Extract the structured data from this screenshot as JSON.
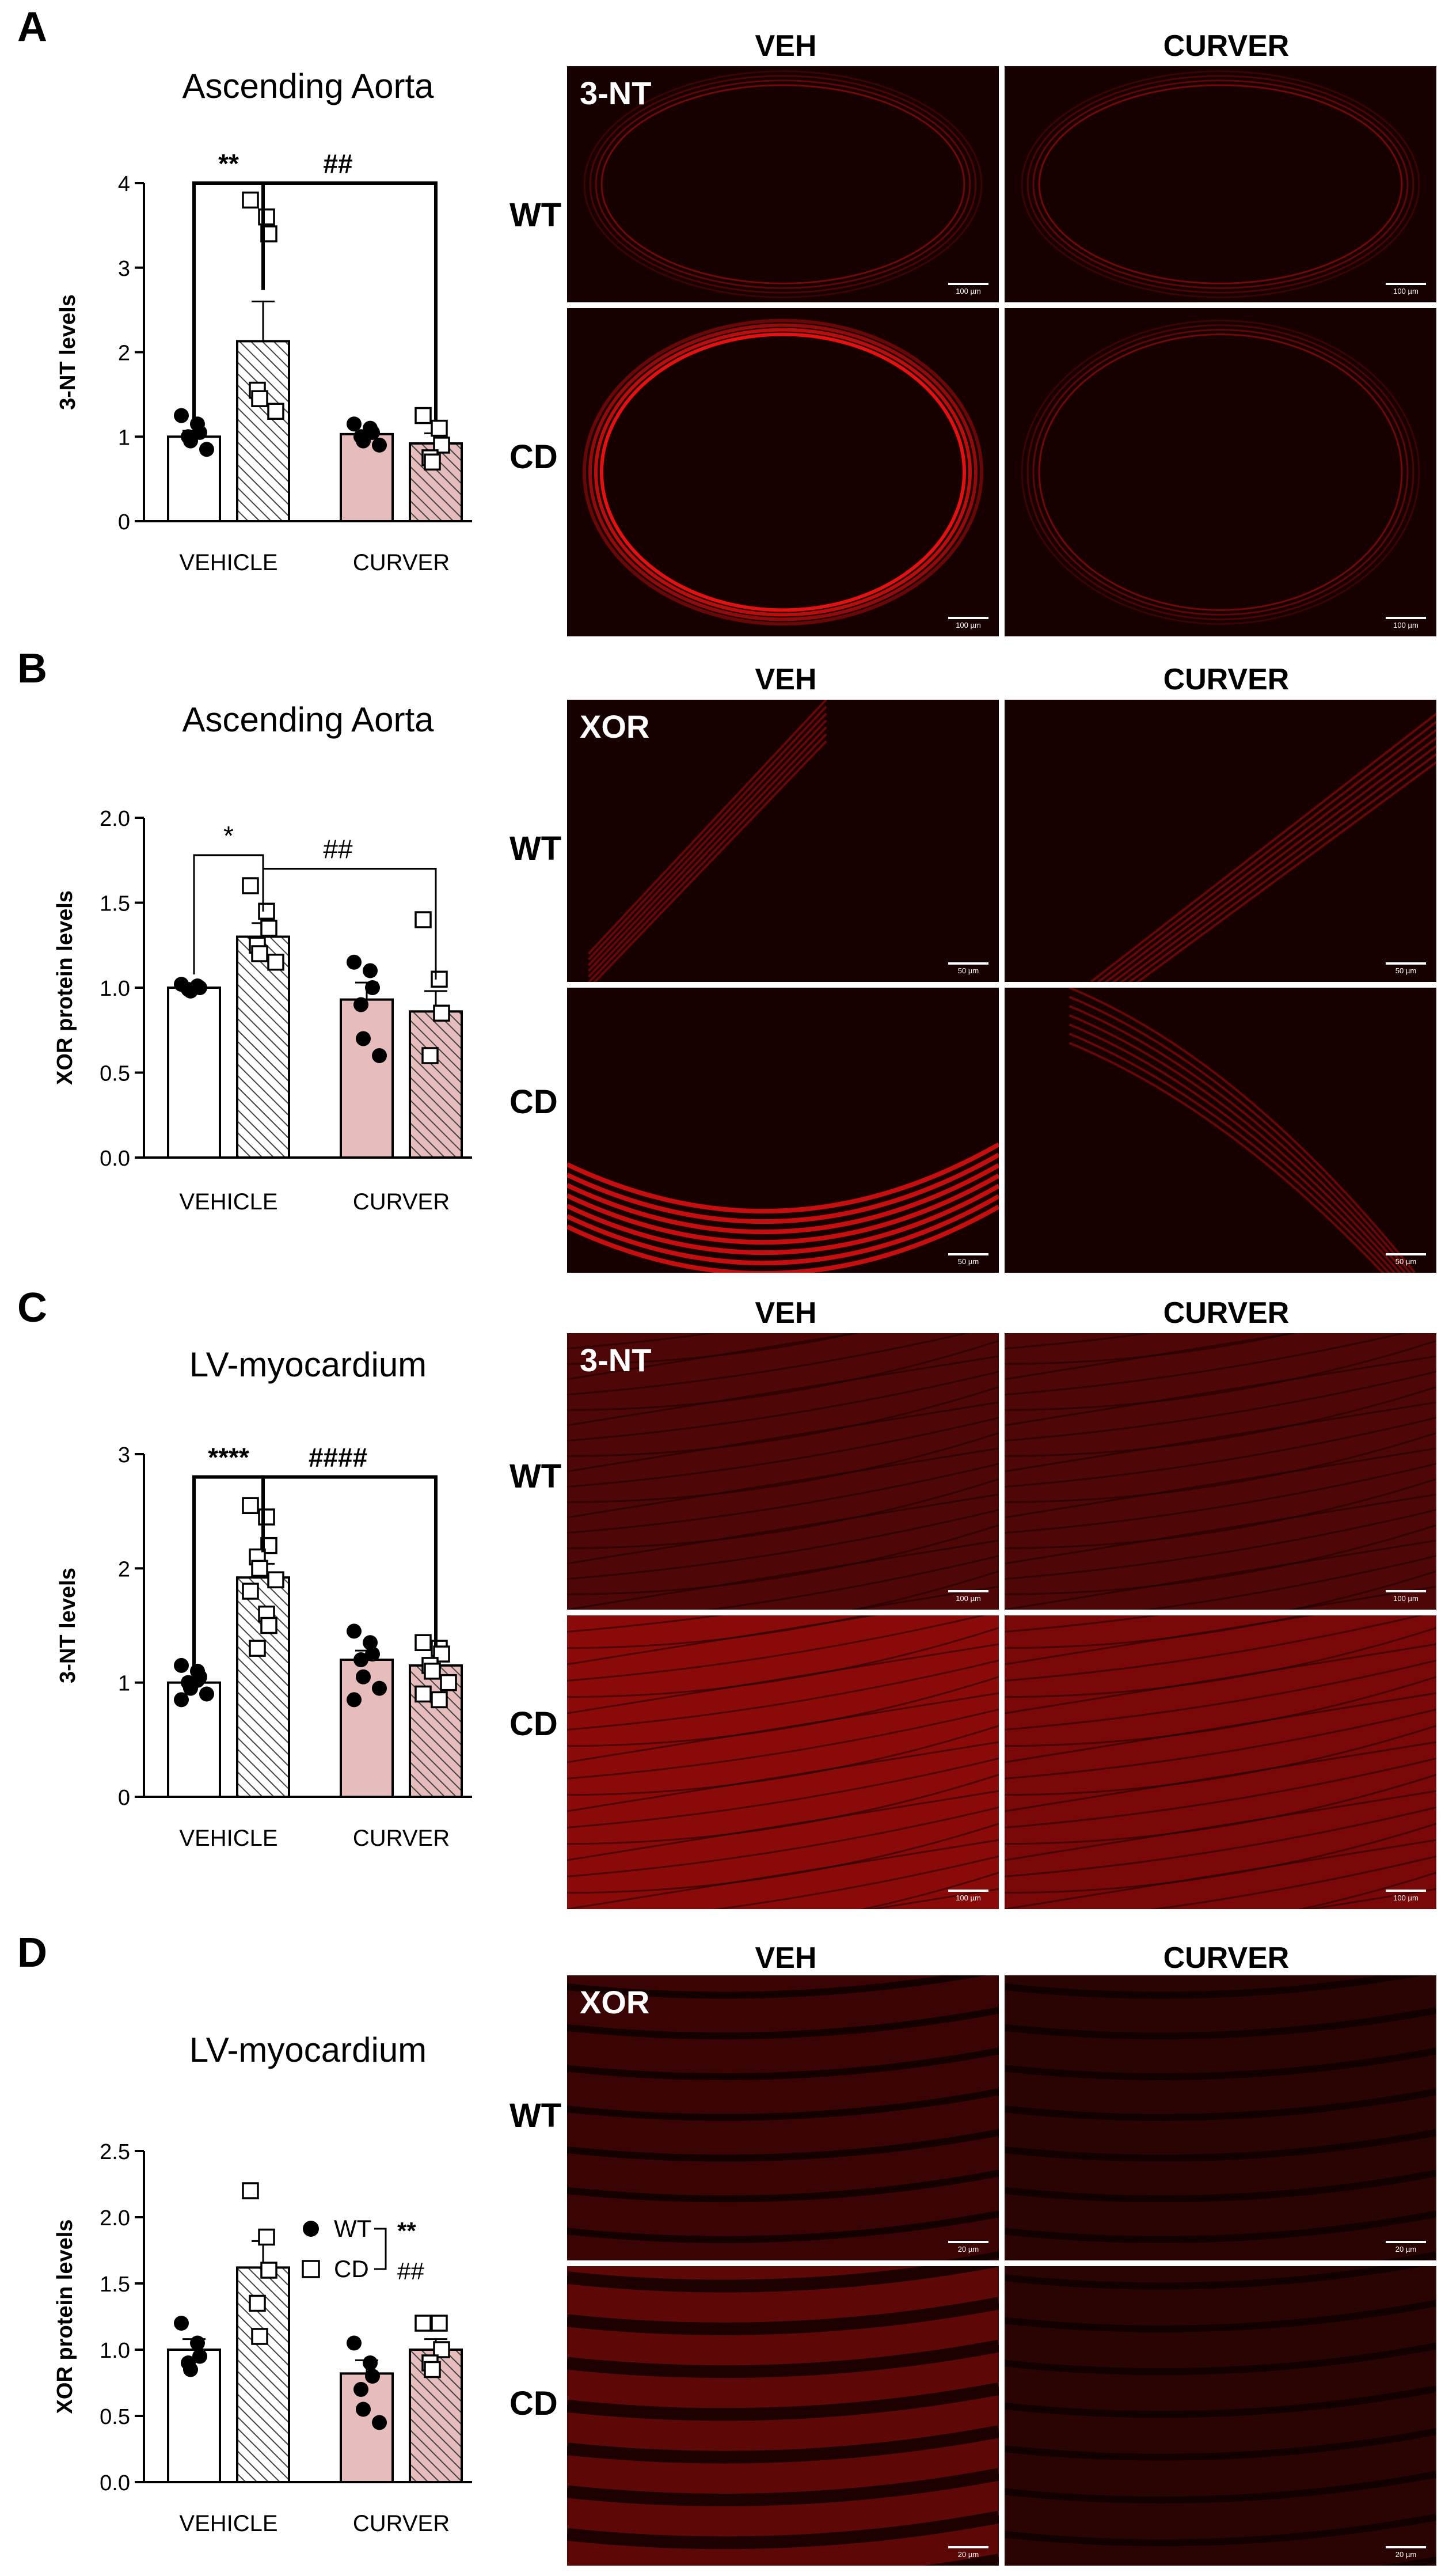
{
  "colors": {
    "wt_fill": "#ffffff",
    "curver_fill": "#e6bcbc",
    "hatch": "#444444",
    "axis": "#000000",
    "image_bg": "#150000",
    "stain": "#e61010"
  },
  "column_headers": {
    "veh": "VEH",
    "curver": "CURVER"
  },
  "row_headers": {
    "wt": "WT",
    "cd": "CD"
  },
  "panels": [
    {
      "id": "A",
      "letter": "A",
      "stain": "3-NT",
      "scalebar": "100 µm",
      "chart_data": {
        "type": "bar",
        "title": "Ascending Aorta",
        "ylabel": "3-NT levels",
        "xlabel": "",
        "ylim": [
          0,
          4
        ],
        "yticks": [
          0,
          1,
          2,
          3,
          4
        ],
        "ytick_labels": [
          "0",
          "1",
          "2",
          "3",
          "4"
        ],
        "categories": [
          "VEHICLE",
          "CURVER"
        ],
        "bars": [
          {
            "group": 0,
            "genotype": "WT",
            "mean": 1.0,
            "sem": 0.07,
            "points": [
              1.25,
              1.15,
              1.05,
              1.0,
              0.95,
              0.85
            ]
          },
          {
            "group": 0,
            "genotype": "CD",
            "mean": 2.13,
            "sem": 0.47,
            "points": [
              3.8,
              3.6,
              3.4,
              1.55,
              1.45,
              1.3
            ]
          },
          {
            "group": 1,
            "genotype": "WT",
            "mean": 1.03,
            "sem": 0.04,
            "points": [
              1.15,
              1.1,
              1.05,
              1.0,
              0.95,
              0.9
            ]
          },
          {
            "group": 1,
            "genotype": "CD",
            "mean": 0.92,
            "sem": 0.12,
            "points": [
              1.25,
              1.1,
              0.9,
              0.75,
              0.7
            ]
          }
        ],
        "annotations": [
          {
            "text": "**",
            "from": 0,
            "to": 1,
            "y": 4.0,
            "bold": true
          },
          {
            "text": "##",
            "from": 1,
            "to": 3,
            "y": 4.0,
            "bold": true
          }
        ]
      }
    },
    {
      "id": "B",
      "letter": "B",
      "stain": "XOR",
      "scalebar": "50 µm",
      "chart_data": {
        "type": "bar",
        "title": "Ascending Aorta",
        "ylabel": "XOR protein levels",
        "xlabel": "",
        "ylim": [
          0,
          2
        ],
        "yticks": [
          0,
          0.5,
          1,
          1.5,
          2
        ],
        "ytick_labels": [
          "0.0",
          "0.5",
          "1.0",
          "1.5",
          "2.0"
        ],
        "categories": [
          "VEHICLE",
          "CURVER"
        ],
        "bars": [
          {
            "group": 0,
            "genotype": "WT",
            "mean": 1.0,
            "sem": 0.01,
            "points": [
              1.02,
              1.01,
              1.0,
              0.99,
              0.98
            ]
          },
          {
            "group": 0,
            "genotype": "CD",
            "mean": 1.3,
            "sem": 0.08,
            "points": [
              1.6,
              1.45,
              1.35,
              1.25,
              1.2,
              1.15
            ]
          },
          {
            "group": 1,
            "genotype": "WT",
            "mean": 0.93,
            "sem": 0.1,
            "points": [
              1.15,
              1.1,
              1.0,
              0.9,
              0.7,
              0.6
            ]
          },
          {
            "group": 1,
            "genotype": "CD",
            "mean": 0.86,
            "sem": 0.12,
            "points": [
              1.4,
              1.05,
              0.85,
              0.6
            ]
          }
        ],
        "annotations": [
          {
            "text": "*",
            "from": 0,
            "to": 1,
            "y": 1.78,
            "bold": false
          },
          {
            "text": "##",
            "from": 1,
            "to": 3,
            "y": 1.7,
            "bold": false
          }
        ]
      }
    },
    {
      "id": "C",
      "letter": "C",
      "stain": "3-NT",
      "scalebar": "100 µm",
      "chart_data": {
        "type": "bar",
        "title": "LV-myocardium",
        "ylabel": "3-NT levels",
        "xlabel": "",
        "ylim": [
          0,
          3
        ],
        "yticks": [
          0,
          1,
          2,
          3
        ],
        "ytick_labels": [
          "0",
          "1",
          "2",
          "3"
        ],
        "categories": [
          "VEHICLE",
          "CURVER"
        ],
        "bars": [
          {
            "group": 0,
            "genotype": "WT",
            "mean": 1.0,
            "sem": 0.04,
            "points": [
              1.15,
              1.1,
              1.05,
              1.0,
              0.95,
              0.9,
              0.85,
              1.02
            ]
          },
          {
            "group": 0,
            "genotype": "CD",
            "mean": 1.92,
            "sem": 0.12,
            "points": [
              2.55,
              2.45,
              2.2,
              2.1,
              2.0,
              1.9,
              1.8,
              1.6,
              1.5,
              1.3
            ]
          },
          {
            "group": 1,
            "genotype": "WT",
            "mean": 1.2,
            "sem": 0.08,
            "points": [
              1.45,
              1.35,
              1.25,
              1.2,
              1.05,
              0.95,
              0.85
            ]
          },
          {
            "group": 1,
            "genotype": "CD",
            "mean": 1.15,
            "sem": 0.06,
            "points": [
              1.35,
              1.3,
              1.25,
              1.15,
              1.1,
              1.0,
              0.9,
              0.85
            ]
          }
        ],
        "annotations": [
          {
            "text": "****",
            "from": 0,
            "to": 1,
            "y": 2.8,
            "bold": true
          },
          {
            "text": "####",
            "from": 1,
            "to": 3,
            "y": 2.8,
            "bold": true
          }
        ]
      }
    },
    {
      "id": "D",
      "letter": "D",
      "stain": "XOR",
      "scalebar": "20 µm",
      "legend": {
        "entries": [
          {
            "marker": "circle",
            "label": "WT"
          },
          {
            "marker": "square",
            "label": "CD"
          }
        ],
        "significance": [
          "**",
          "##"
        ]
      },
      "chart_data": {
        "type": "bar",
        "title": "LV-myocardium",
        "ylabel": "XOR protein levels",
        "xlabel": "",
        "ylim": [
          0,
          2.5
        ],
        "yticks": [
          0,
          0.5,
          1,
          1.5,
          2,
          2.5
        ],
        "ytick_labels": [
          "0.0",
          "0.5",
          "1.0",
          "1.5",
          "2.0",
          "2.5"
        ],
        "categories": [
          "VEHICLE",
          "CURVER"
        ],
        "bars": [
          {
            "group": 0,
            "genotype": "WT",
            "mean": 1.0,
            "sem": 0.08,
            "points": [
              1.2,
              1.05,
              0.95,
              0.9,
              0.85
            ]
          },
          {
            "group": 0,
            "genotype": "CD",
            "mean": 1.62,
            "sem": 0.2,
            "points": [
              2.2,
              1.85,
              1.6,
              1.35,
              1.1
            ]
          },
          {
            "group": 1,
            "genotype": "WT",
            "mean": 0.82,
            "sem": 0.1,
            "points": [
              1.05,
              0.9,
              0.8,
              0.7,
              0.55,
              0.45
            ]
          },
          {
            "group": 1,
            "genotype": "CD",
            "mean": 1.0,
            "sem": 0.08,
            "points": [
              1.2,
              1.2,
              1.0,
              0.9,
              0.85
            ]
          }
        ],
        "annotations": []
      }
    }
  ]
}
